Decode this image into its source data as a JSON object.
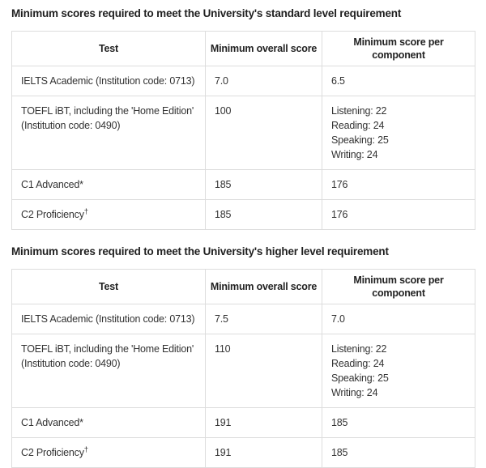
{
  "colors": {
    "text": "#333333",
    "title": "#1f1f1f",
    "border": "#dddddd",
    "background": "#ffffff"
  },
  "tables": [
    {
      "title": "Minimum scores required to meet the University's standard level requirement",
      "headers": {
        "test": "Test",
        "overall": "Minimum overall score",
        "component": "Minimum score per component"
      },
      "rows": [
        {
          "test": "IELTS Academic (Institution code: 0713)",
          "overall": "7.0",
          "components": [
            "6.5"
          ]
        },
        {
          "test": "TOEFL iBT, including the 'Home Edition'",
          "test_line2": "(Institution code: 0490)",
          "overall": "100",
          "components": [
            "Listening: 22",
            "Reading: 24",
            "Speaking: 25",
            "Writing: 24"
          ]
        },
        {
          "test": "C1 Advanced",
          "marker": "*",
          "overall": "185",
          "components": [
            "176"
          ]
        },
        {
          "test": "C2 Proficiency",
          "marker_sup": "†",
          "overall": "185",
          "components": [
            "176"
          ]
        }
      ]
    },
    {
      "title": "Minimum scores required to meet the University's higher level requirement",
      "headers": {
        "test": "Test",
        "overall": "Minimum overall score",
        "component": "Minimum score per component"
      },
      "rows": [
        {
          "test": "IELTS Academic (Institution code: 0713)",
          "overall": "7.5",
          "components": [
            "7.0"
          ]
        },
        {
          "test": "TOEFL iBT, including the 'Home Edition'",
          "test_line2": "(Institution code: 0490)",
          "overall": "110",
          "components": [
            "Listening: 22",
            "Reading: 24",
            "Speaking: 25",
            "Writing: 24"
          ]
        },
        {
          "test": "C1 Advanced",
          "marker": "*",
          "overall": "191",
          "components": [
            "185"
          ]
        },
        {
          "test": "C2 Proficiency",
          "marker_sup": "†",
          "overall": "191",
          "components": [
            "185"
          ]
        }
      ]
    }
  ]
}
